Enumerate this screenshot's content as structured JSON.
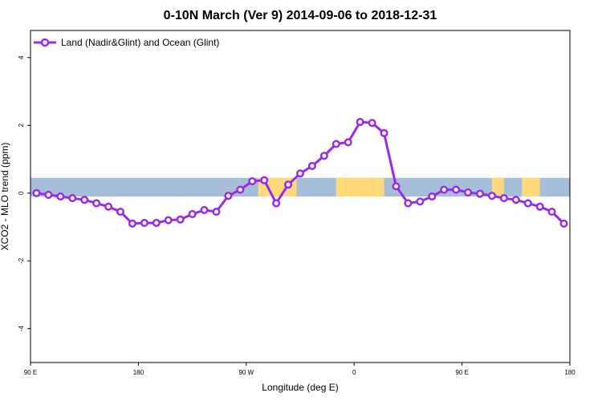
{
  "chart_data": {
    "type": "line",
    "title": "0-10N March (Ver 9)   2014-09-06 to 2018-12-31",
    "xlabel": "Longitude (deg E)",
    "ylabel": "XCO2 - MLO trend (ppm)",
    "xlim": [
      90,
      540
    ],
    "ylim": [
      -5,
      4.8
    ],
    "x_ticks": [
      {
        "value": 90,
        "label": "90 E"
      },
      {
        "value": 180,
        "label": "180"
      },
      {
        "value": 270,
        "label": "90 W"
      },
      {
        "value": 360,
        "label": "0"
      },
      {
        "value": 450,
        "label": "90 E"
      },
      {
        "value": 540,
        "label": "180"
      }
    ],
    "y_ticks": [
      {
        "value": -4,
        "label": "-4"
      },
      {
        "value": -2,
        "label": "-2"
      },
      {
        "value": 0,
        "label": "0"
      },
      {
        "value": 2,
        "label": "2"
      },
      {
        "value": 4,
        "label": "4"
      }
    ],
    "legend": {
      "position": "top-left",
      "entries": [
        "Land (Nadir&Glint) and Ocean (Glint)"
      ]
    },
    "colors": {
      "series": "#9a2be2",
      "ocean_band": "#a7bedb",
      "land_band": "#ffd97a"
    },
    "band": {
      "ymin": -0.1,
      "ymax": 0.45
    },
    "land_segments": [
      [
        280,
        312
      ],
      [
        345,
        385
      ],
      [
        475,
        485
      ],
      [
        500,
        515
      ]
    ],
    "series": [
      {
        "name": "Land (Nadir&Glint) and Ocean (Glint)",
        "x": [
          95,
          105,
          115,
          125,
          135,
          145,
          155,
          165,
          175,
          185,
          195,
          205,
          215,
          225,
          235,
          245,
          255,
          265,
          275,
          285,
          295,
          305,
          315,
          325,
          335,
          345,
          355,
          365,
          375,
          385,
          395,
          405,
          415,
          425,
          435,
          445,
          455,
          465,
          475,
          485,
          495,
          505,
          515,
          525,
          535
        ],
        "values": [
          0.0,
          -0.05,
          -0.1,
          -0.15,
          -0.2,
          -0.3,
          -0.4,
          -0.55,
          -0.9,
          -0.88,
          -0.88,
          -0.8,
          -0.78,
          -0.62,
          -0.5,
          -0.55,
          -0.08,
          0.1,
          0.35,
          0.38,
          -0.3,
          0.25,
          0.58,
          0.8,
          1.1,
          1.45,
          1.5,
          2.1,
          2.07,
          1.77,
          0.2,
          -0.3,
          -0.25,
          -0.1,
          0.1,
          0.1,
          0.02,
          -0.02,
          -0.08,
          -0.15,
          -0.2,
          -0.3,
          -0.4,
          -0.55,
          -0.9
        ]
      }
    ]
  }
}
